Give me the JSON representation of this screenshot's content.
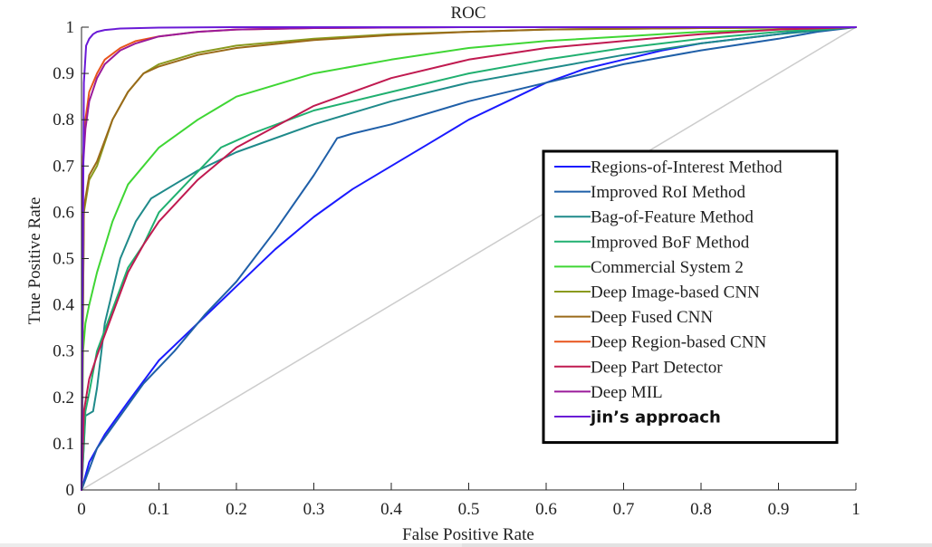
{
  "chart_data": {
    "type": "line",
    "title": "ROC",
    "xlabel": "False Positive Rate",
    "ylabel": "True Positive Rate",
    "xlim": [
      0,
      1
    ],
    "ylim": [
      0,
      1
    ],
    "xticks": [
      0,
      0.1,
      0.2,
      0.3,
      0.4,
      0.5,
      0.6,
      0.7,
      0.8,
      0.9,
      1
    ],
    "yticks": [
      0,
      0.1,
      0.2,
      0.3,
      0.4,
      0.5,
      0.6,
      0.7,
      0.8,
      0.9,
      1
    ],
    "xtick_labels": [
      "0",
      "0.1",
      "0.2",
      "0.3",
      "0.4",
      "0.5",
      "0.6",
      "0.7",
      "0.8",
      "0.9",
      "1"
    ],
    "ytick_labels": [
      "0",
      "0.1",
      "0.2",
      "0.3",
      "0.4",
      "0.5",
      "0.6",
      "0.7",
      "0.8",
      "0.9",
      "1"
    ],
    "grid": false,
    "legend_position": "center-right",
    "reference_line": {
      "x": [
        0,
        1
      ],
      "y": [
        0,
        1
      ],
      "color": "#cccccc"
    },
    "series": [
      {
        "name": "Regions-of-Interest Method",
        "color": "#1a1aff",
        "x": [
          0,
          0.01,
          0.03,
          0.06,
          0.1,
          0.15,
          0.2,
          0.25,
          0.3,
          0.35,
          0.4,
          0.45,
          0.5,
          0.55,
          0.6,
          0.65,
          0.7,
          0.75,
          0.8,
          0.85,
          0.9,
          0.95,
          1
        ],
        "y": [
          0,
          0.06,
          0.12,
          0.19,
          0.28,
          0.36,
          0.44,
          0.52,
          0.59,
          0.65,
          0.7,
          0.75,
          0.8,
          0.84,
          0.88,
          0.91,
          0.93,
          0.95,
          0.965,
          0.975,
          0.985,
          0.995,
          1
        ]
      },
      {
        "name": "Improved RoI Method",
        "color": "#1f5fa8",
        "x": [
          0,
          0.02,
          0.05,
          0.08,
          0.12,
          0.16,
          0.2,
          0.25,
          0.3,
          0.33,
          0.35,
          0.4,
          0.5,
          0.6,
          0.7,
          0.8,
          0.9,
          0.95,
          1
        ],
        "y": [
          0,
          0.09,
          0.16,
          0.23,
          0.3,
          0.38,
          0.45,
          0.56,
          0.68,
          0.76,
          0.77,
          0.79,
          0.84,
          0.88,
          0.92,
          0.95,
          0.975,
          0.99,
          1
        ]
      },
      {
        "name": "Bag-of-Feature Method",
        "color": "#1f8a8a",
        "x": [
          0,
          0.005,
          0.01,
          0.015,
          0.02,
          0.03,
          0.05,
          0.07,
          0.09,
          0.12,
          0.15,
          0.2,
          0.3,
          0.4,
          0.5,
          0.6,
          0.7,
          0.8,
          0.9,
          1
        ],
        "y": [
          0,
          0.16,
          0.165,
          0.17,
          0.22,
          0.36,
          0.5,
          0.58,
          0.63,
          0.66,
          0.69,
          0.73,
          0.79,
          0.84,
          0.88,
          0.91,
          0.94,
          0.965,
          0.985,
          1
        ]
      },
      {
        "name": "Improved BoF Method",
        "color": "#20b070",
        "x": [
          0,
          0.005,
          0.01,
          0.02,
          0.04,
          0.06,
          0.08,
          0.1,
          0.14,
          0.18,
          0.22,
          0.3,
          0.4,
          0.5,
          0.6,
          0.7,
          0.8,
          0.9,
          1
        ],
        "y": [
          0,
          0.17,
          0.21,
          0.3,
          0.39,
          0.48,
          0.53,
          0.6,
          0.67,
          0.74,
          0.77,
          0.82,
          0.86,
          0.9,
          0.93,
          0.955,
          0.975,
          0.99,
          1
        ]
      },
      {
        "name": "Commercial System 2",
        "color": "#3fd634",
        "x": [
          0,
          0.002,
          0.005,
          0.01,
          0.02,
          0.04,
          0.06,
          0.1,
          0.15,
          0.2,
          0.3,
          0.4,
          0.5,
          0.6,
          0.7,
          0.8,
          0.9,
          1
        ],
        "y": [
          0,
          0.3,
          0.36,
          0.4,
          0.47,
          0.58,
          0.66,
          0.74,
          0.8,
          0.85,
          0.9,
          0.93,
          0.955,
          0.97,
          0.98,
          0.99,
          0.995,
          1
        ]
      },
      {
        "name": "Deep Image-based CNN",
        "color": "#8a9a1e",
        "x": [
          0,
          0.003,
          0.01,
          0.02,
          0.04,
          0.06,
          0.08,
          0.1,
          0.15,
          0.2,
          0.3,
          0.4,
          0.5,
          0.6,
          0.8,
          1
        ],
        "y": [
          0,
          0.6,
          0.67,
          0.7,
          0.8,
          0.86,
          0.9,
          0.92,
          0.945,
          0.96,
          0.975,
          0.985,
          0.99,
          0.995,
          0.998,
          1
        ]
      },
      {
        "name": "Deep Fused CNN",
        "color": "#9a6a1a",
        "x": [
          0,
          0.003,
          0.01,
          0.02,
          0.04,
          0.06,
          0.08,
          0.1,
          0.15,
          0.2,
          0.3,
          0.4,
          0.5,
          0.6,
          0.8,
          1
        ],
        "y": [
          0,
          0.61,
          0.68,
          0.71,
          0.8,
          0.86,
          0.9,
          0.915,
          0.94,
          0.955,
          0.972,
          0.983,
          0.99,
          0.995,
          0.998,
          1
        ]
      },
      {
        "name": "Deep Region-based CNN",
        "color": "#e8541c",
        "x": [
          0,
          0.002,
          0.005,
          0.01,
          0.02,
          0.03,
          0.05,
          0.07,
          0.1,
          0.15,
          0.2,
          0.3,
          0.5,
          1
        ],
        "y": [
          0,
          0.72,
          0.8,
          0.86,
          0.9,
          0.93,
          0.955,
          0.97,
          0.98,
          0.99,
          0.995,
          0.998,
          1,
          1
        ]
      },
      {
        "name": "Deep Part Detector",
        "color": "#c01a50",
        "x": [
          0,
          0.003,
          0.01,
          0.02,
          0.04,
          0.06,
          0.08,
          0.1,
          0.15,
          0.2,
          0.3,
          0.4,
          0.5,
          0.6,
          0.7,
          0.8,
          0.9,
          1
        ],
        "y": [
          0,
          0.17,
          0.24,
          0.29,
          0.38,
          0.47,
          0.53,
          0.58,
          0.67,
          0.74,
          0.83,
          0.89,
          0.93,
          0.955,
          0.97,
          0.985,
          0.995,
          1
        ]
      },
      {
        "name": "Deep MIL",
        "color": "#9a1a9a",
        "x": [
          0,
          0.002,
          0.005,
          0.01,
          0.02,
          0.03,
          0.05,
          0.07,
          0.1,
          0.15,
          0.2,
          0.3,
          0.5,
          1
        ],
        "y": [
          0,
          0.7,
          0.78,
          0.84,
          0.89,
          0.92,
          0.95,
          0.965,
          0.98,
          0.99,
          0.995,
          0.998,
          1,
          1
        ]
      },
      {
        "name": "jin’s approach",
        "color": "#6a1ad6",
        "bold": true,
        "x": [
          0,
          0.003,
          0.006,
          0.01,
          0.015,
          0.02,
          0.03,
          0.05,
          0.1,
          0.2,
          0.5,
          1
        ],
        "y": [
          0,
          0.88,
          0.96,
          0.975,
          0.985,
          0.99,
          0.994,
          0.997,
          0.999,
          1,
          1,
          1
        ]
      }
    ]
  }
}
